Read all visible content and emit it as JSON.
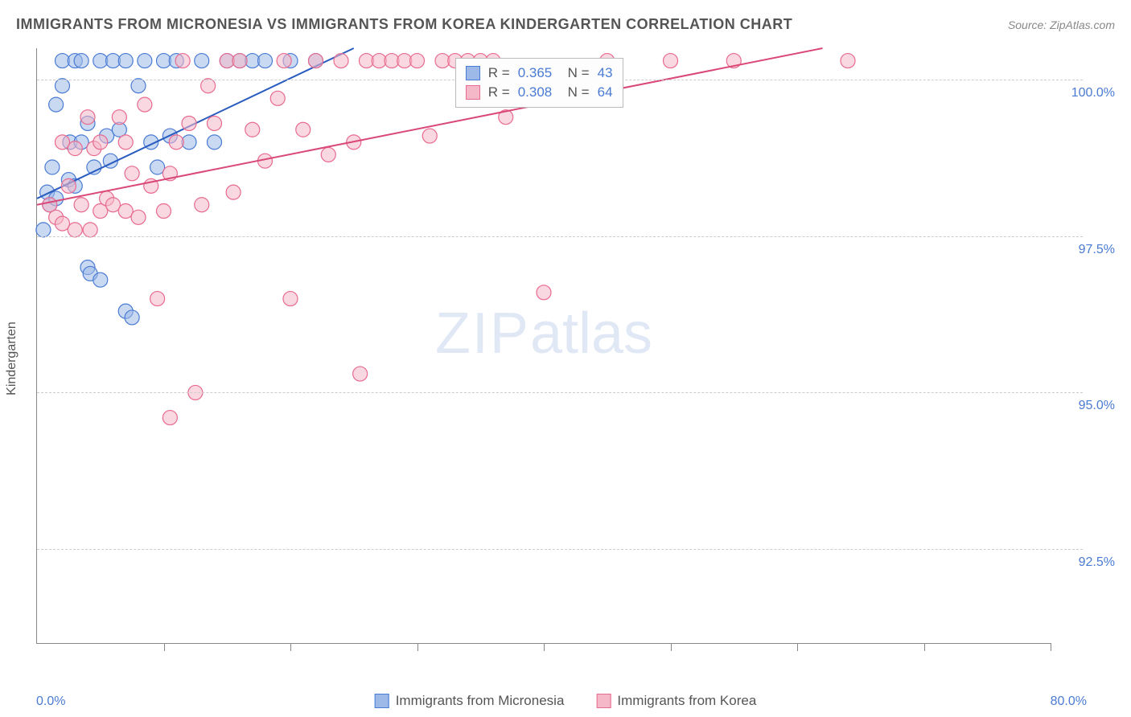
{
  "header": {
    "title": "IMMIGRANTS FROM MICRONESIA VS IMMIGRANTS FROM KOREA KINDERGARTEN CORRELATION CHART",
    "source": "Source: ZipAtlas.com"
  },
  "chart": {
    "type": "scatter",
    "ylabel": "Kindergarten",
    "xlim": [
      0,
      80
    ],
    "ylim": [
      91,
      100.5
    ],
    "xtick_positions": [
      0,
      10,
      20,
      30,
      40,
      50,
      60,
      70,
      80
    ],
    "xtick_label_min": "0.0%",
    "xtick_label_max": "80.0%",
    "ytick_positions": [
      92.5,
      95.0,
      97.5,
      100.0
    ],
    "ytick_labels": [
      "92.5%",
      "95.0%",
      "97.5%",
      "100.0%"
    ],
    "grid_color": "#d5d5d5",
    "background_color": "#ffffff",
    "marker_radius": 9,
    "marker_opacity": 0.55,
    "line_width": 2,
    "series": [
      {
        "id": "micronesia",
        "label": "Immigrants from Micronesia",
        "color_fill": "#9db9e8",
        "color_stroke": "#4a7bd4",
        "line_color": "#2a5cc0",
        "R": "0.365",
        "N": "43",
        "trend": {
          "x1": 0,
          "y1": 98.1,
          "x2": 25,
          "y2": 100.5
        },
        "points": [
          [
            0.5,
            97.6
          ],
          [
            0.8,
            98.2
          ],
          [
            1.0,
            98.0
          ],
          [
            1.2,
            98.6
          ],
          [
            1.5,
            99.6
          ],
          [
            1.5,
            98.1
          ],
          [
            2.0,
            100.3
          ],
          [
            2.0,
            99.9
          ],
          [
            2.5,
            98.4
          ],
          [
            2.6,
            99.0
          ],
          [
            3.0,
            100.3
          ],
          [
            3.0,
            98.3
          ],
          [
            3.5,
            99.0
          ],
          [
            3.5,
            100.3
          ],
          [
            4.0,
            99.3
          ],
          [
            4.0,
            97.0
          ],
          [
            4.2,
            96.9
          ],
          [
            4.5,
            98.6
          ],
          [
            5.0,
            100.3
          ],
          [
            5.0,
            96.8
          ],
          [
            5.5,
            99.1
          ],
          [
            5.8,
            98.7
          ],
          [
            6.0,
            100.3
          ],
          [
            6.5,
            99.2
          ],
          [
            7.0,
            100.3
          ],
          [
            7.0,
            96.3
          ],
          [
            7.5,
            96.2
          ],
          [
            8.0,
            99.9
          ],
          [
            8.5,
            100.3
          ],
          [
            9.0,
            99.0
          ],
          [
            9.5,
            98.6
          ],
          [
            10.0,
            100.3
          ],
          [
            10.5,
            99.1
          ],
          [
            11.0,
            100.3
          ],
          [
            12.0,
            99.0
          ],
          [
            13.0,
            100.3
          ],
          [
            14.0,
            99.0
          ],
          [
            15.0,
            100.3
          ],
          [
            16.0,
            100.3
          ],
          [
            17.0,
            100.3
          ],
          [
            18.0,
            100.3
          ],
          [
            20.0,
            100.3
          ],
          [
            22.0,
            100.3
          ]
        ]
      },
      {
        "id": "korea",
        "label": "Immigrants from Korea",
        "color_fill": "#f5b8c8",
        "color_stroke": "#e76a8f",
        "line_color": "#d94876",
        "R": "0.308",
        "N": "64",
        "trend": {
          "x1": 0,
          "y1": 98.0,
          "x2": 62,
          "y2": 100.5
        },
        "points": [
          [
            1.0,
            98.0
          ],
          [
            1.5,
            97.8
          ],
          [
            2.0,
            97.7
          ],
          [
            2.0,
            99.0
          ],
          [
            2.5,
            98.3
          ],
          [
            3.0,
            98.9
          ],
          [
            3.0,
            97.6
          ],
          [
            3.5,
            98.0
          ],
          [
            4.0,
            99.4
          ],
          [
            4.2,
            97.6
          ],
          [
            4.5,
            98.9
          ],
          [
            5.0,
            97.9
          ],
          [
            5.0,
            99.0
          ],
          [
            5.5,
            98.1
          ],
          [
            6.0,
            98.0
          ],
          [
            6.5,
            99.4
          ],
          [
            7.0,
            97.9
          ],
          [
            7.0,
            99.0
          ],
          [
            7.5,
            98.5
          ],
          [
            8.0,
            97.8
          ],
          [
            8.5,
            99.6
          ],
          [
            9.0,
            98.3
          ],
          [
            9.5,
            96.5
          ],
          [
            10.0,
            97.9
          ],
          [
            10.5,
            98.5
          ],
          [
            10.5,
            94.6
          ],
          [
            11.0,
            99.0
          ],
          [
            11.5,
            100.3
          ],
          [
            12.0,
            99.3
          ],
          [
            12.5,
            95.0
          ],
          [
            13.0,
            98.0
          ],
          [
            13.5,
            99.9
          ],
          [
            14.0,
            99.3
          ],
          [
            15.0,
            100.3
          ],
          [
            15.5,
            98.2
          ],
          [
            16.0,
            100.3
          ],
          [
            17.0,
            99.2
          ],
          [
            18.0,
            98.7
          ],
          [
            19.0,
            99.7
          ],
          [
            19.5,
            100.3
          ],
          [
            20.0,
            96.5
          ],
          [
            21.0,
            99.2
          ],
          [
            22.0,
            100.3
          ],
          [
            23.0,
            98.8
          ],
          [
            24.0,
            100.3
          ],
          [
            25.0,
            99.0
          ],
          [
            25.5,
            95.3
          ],
          [
            26.0,
            100.3
          ],
          [
            27.0,
            100.3
          ],
          [
            28.0,
            100.3
          ],
          [
            29.0,
            100.3
          ],
          [
            30.0,
            100.3
          ],
          [
            31.0,
            99.1
          ],
          [
            32.0,
            100.3
          ],
          [
            33.0,
            100.3
          ],
          [
            34.0,
            100.3
          ],
          [
            35.0,
            100.3
          ],
          [
            36.0,
            100.3
          ],
          [
            37.0,
            99.4
          ],
          [
            40.0,
            96.6
          ],
          [
            45.0,
            100.3
          ],
          [
            50.0,
            100.3
          ],
          [
            55.0,
            100.3
          ],
          [
            64.0,
            100.3
          ]
        ]
      }
    ],
    "legend": {
      "items": [
        {
          "label": "Immigrants from Micronesia",
          "fill": "#9db9e8",
          "stroke": "#4a7bd4"
        },
        {
          "label": "Immigrants from Korea",
          "fill": "#f5b8c8",
          "stroke": "#e76a8f"
        }
      ]
    },
    "watermark": "ZIPatlas"
  }
}
